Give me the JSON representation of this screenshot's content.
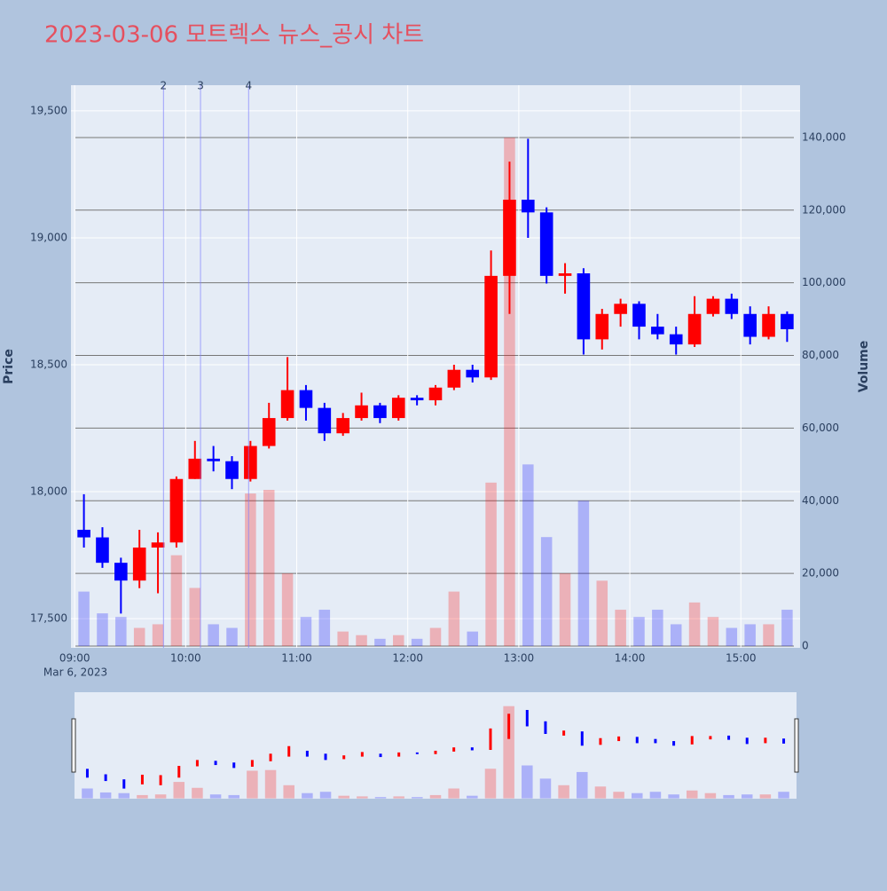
{
  "chart_data": {
    "type": "candlestick",
    "title": "2023-03-06 모트렉스 뉴스_공시 차트",
    "x_sublabel": "Mar 6, 2023",
    "y_title": "Price",
    "y2_title": "Volume",
    "x": [
      "09:00",
      "09:10",
      "09:20",
      "09:30",
      "09:40",
      "09:50",
      "10:00",
      "10:10",
      "10:20",
      "10:30",
      "10:40",
      "10:50",
      "11:00",
      "11:10",
      "11:20",
      "11:30",
      "11:40",
      "11:50",
      "12:00",
      "12:10",
      "12:20",
      "12:30",
      "12:40",
      "12:50",
      "13:00",
      "13:10",
      "13:20",
      "13:30",
      "13:40",
      "13:50",
      "14:00",
      "14:10",
      "14:20",
      "14:30",
      "14:40",
      "14:50",
      "15:00",
      "15:10",
      "15:20"
    ],
    "open": [
      17850,
      17820,
      17720,
      17650,
      17780,
      17800,
      18050,
      18130,
      18120,
      18050,
      18180,
      18290,
      18400,
      18330,
      18230,
      18290,
      18340,
      18290,
      18370,
      18360,
      18410,
      18480,
      18450,
      18850,
      19150,
      19100,
      18850,
      18860,
      18600,
      18700,
      18740,
      18650,
      18620,
      18580,
      18700,
      18760,
      18700,
      18610,
      18700
    ],
    "high": [
      17990,
      17860,
      17740,
      17850,
      17840,
      18060,
      18200,
      18180,
      18140,
      18200,
      18350,
      18530,
      18420,
      18350,
      18310,
      18390,
      18350,
      18380,
      18380,
      18420,
      18500,
      18500,
      18950,
      19300,
      19390,
      19120,
      18900,
      18880,
      18720,
      18760,
      18750,
      18700,
      18650,
      18770,
      18770,
      18780,
      18730,
      18730,
      18710
    ],
    "low": [
      17780,
      17700,
      17520,
      17620,
      17600,
      17780,
      18050,
      18080,
      18010,
      18040,
      18170,
      18280,
      18280,
      18200,
      18220,
      18280,
      18270,
      18280,
      18340,
      18340,
      18400,
      18430,
      18440,
      18700,
      19000,
      18820,
      18780,
      18540,
      18560,
      18650,
      18600,
      18600,
      18540,
      18570,
      18690,
      18680,
      18580,
      18600,
      18590
    ],
    "close": [
      17820,
      17720,
      17650,
      17780,
      17800,
      18050,
      18130,
      18120,
      18050,
      18180,
      18290,
      18400,
      18330,
      18230,
      18290,
      18340,
      18290,
      18370,
      18360,
      18410,
      18480,
      18450,
      18850,
      19150,
      19100,
      18850,
      18860,
      18600,
      18700,
      18740,
      18650,
      18620,
      18580,
      18700,
      18760,
      18700,
      18610,
      18700,
      18640
    ],
    "volume": [
      15000,
      9000,
      8000,
      5000,
      6000,
      25000,
      16000,
      6000,
      5000,
      42000,
      43000,
      20000,
      8000,
      10000,
      4000,
      3000,
      2000,
      3000,
      2000,
      5000,
      15000,
      4000,
      45000,
      140000,
      50000,
      30000,
      20000,
      40000,
      18000,
      10000,
      8000,
      10000,
      6000,
      12000,
      8000,
      5000,
      6000,
      6000,
      10000
    ],
    "up_color": "#ff0000",
    "down_color": "#0000ff",
    "xlim": [
      "08:58",
      "15:32"
    ],
    "xticks": [
      "09:00",
      "10:00",
      "11:00",
      "12:00",
      "13:00",
      "14:00",
      "15:00"
    ],
    "ylim": [
      17385,
      19601
    ],
    "yticks": [
      {
        "value": 17500,
        "label": "17,500"
      },
      {
        "value": 18000,
        "label": "18,000"
      },
      {
        "value": 18500,
        "label": "18,500"
      },
      {
        "value": 19000,
        "label": "19,000"
      },
      {
        "value": 19500,
        "label": "19,500"
      }
    ],
    "y2lim": [
      -490,
      154400
    ],
    "y2ticks": [
      0,
      {
        "value": 20000,
        "label": "20,000"
      },
      {
        "value": 40000,
        "label": "40,000"
      },
      {
        "value": 60000,
        "label": "60,000"
      },
      {
        "value": 80000,
        "label": "80,000"
      },
      {
        "value": 100000,
        "label": "100,000"
      },
      {
        "value": 120000,
        "label": "120,000"
      },
      {
        "value": 140000,
        "label": "140,000"
      }
    ],
    "annotations": [
      {
        "x": "09:48",
        "label": "2"
      },
      {
        "x": "10:08",
        "label": "3"
      },
      {
        "x": "10:34",
        "label": "4"
      }
    ]
  }
}
